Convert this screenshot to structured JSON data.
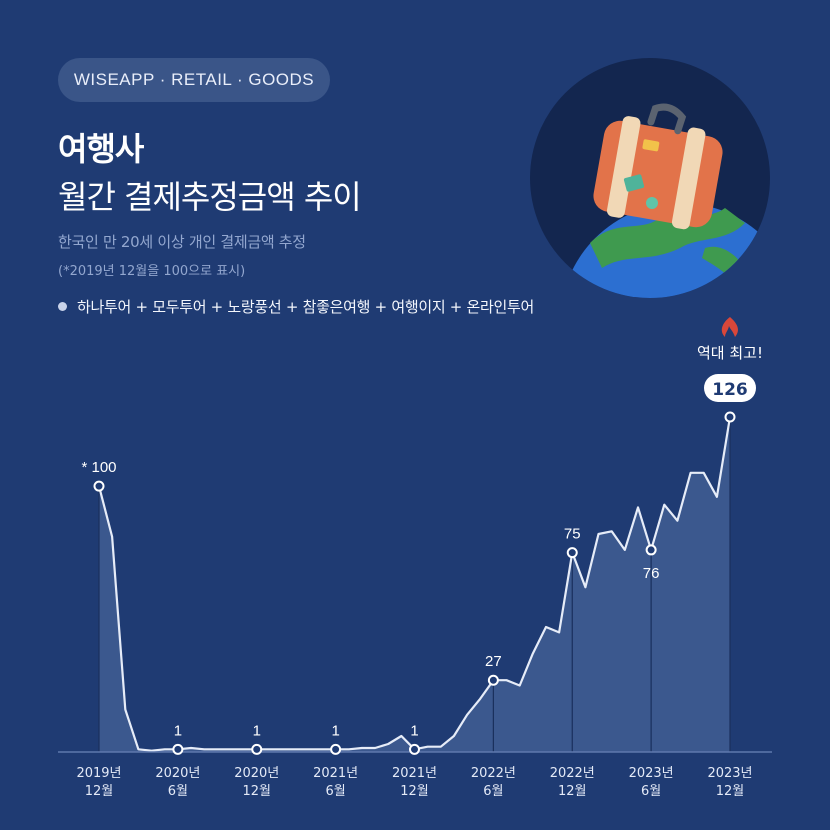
{
  "header": {
    "badge": "WISEAPP · RETAIL · GOODS",
    "title_bold": "여행사",
    "title_main": "월간 결제추정금액 추이",
    "subtitle": "한국인 만 20세 이상 개인 결제금액 추정",
    "note": "(*2019년 12월을 100으로 표시)",
    "legend": "하나투어 + 모두투어 + 노랑풍선 + 참좋은여행 + 여행이지 + 온라인투어"
  },
  "icons": [
    "suitcase-globe-illustration",
    "fire-icon"
  ],
  "colors": {
    "background": "#1f3b73",
    "line": "#e6ecf8",
    "area": "#3d5a8f",
    "highlight": "#d9473a"
  },
  "chart_data": {
    "type": "area",
    "x": [
      "2019-12",
      "2020-01",
      "2020-02",
      "2020-03",
      "2020-04",
      "2020-05",
      "2020-06",
      "2020-07",
      "2020-08",
      "2020-09",
      "2020-10",
      "2020-11",
      "2020-12",
      "2021-01",
      "2021-02",
      "2021-03",
      "2021-04",
      "2021-05",
      "2021-06",
      "2021-07",
      "2021-08",
      "2021-09",
      "2021-10",
      "2021-11",
      "2021-12",
      "2022-01",
      "2022-02",
      "2022-03",
      "2022-04",
      "2022-05",
      "2022-06",
      "2022-07",
      "2022-08",
      "2022-09",
      "2022-10",
      "2022-11",
      "2022-12",
      "2023-01",
      "2023-02",
      "2023-03",
      "2023-04",
      "2023-05",
      "2023-06",
      "2023-07",
      "2023-08",
      "2023-09",
      "2023-10",
      "2023-11",
      "2023-12"
    ],
    "values": [
      100,
      81,
      16,
      1,
      0.5,
      1,
      1,
      1.5,
      1,
      1,
      1,
      1,
      1,
      1,
      1,
      1,
      1,
      1,
      1,
      1,
      1.5,
      1.5,
      3,
      6,
      1,
      2,
      2,
      6,
      14,
      20,
      27,
      27,
      25,
      37,
      47,
      45,
      75,
      62,
      82,
      83,
      76,
      92,
      76,
      93,
      87,
      105,
      105,
      96,
      126
    ],
    "tick_labels": [
      {
        "x": "2019-12",
        "line1": "2019년",
        "line2": "12월"
      },
      {
        "x": "2020-06",
        "line1": "2020년",
        "line2": "6월"
      },
      {
        "x": "2020-12",
        "line1": "2020년",
        "line2": "12월"
      },
      {
        "x": "2021-06",
        "line1": "2021년",
        "line2": "6월"
      },
      {
        "x": "2021-12",
        "line1": "2021년",
        "line2": "12월"
      },
      {
        "x": "2022-06",
        "line1": "2022년",
        "line2": "6월"
      },
      {
        "x": "2022-12",
        "line1": "2022년",
        "line2": "12월"
      },
      {
        "x": "2023-06",
        "line1": "2023년",
        "line2": "6월"
      },
      {
        "x": "2023-12",
        "line1": "2023년",
        "line2": "12월"
      }
    ],
    "data_labels": [
      {
        "x": "2019-12",
        "text": "* 100"
      },
      {
        "x": "2020-06",
        "text": "1"
      },
      {
        "x": "2020-12",
        "text": "1"
      },
      {
        "x": "2021-06",
        "text": "1"
      },
      {
        "x": "2021-12",
        "text": "1"
      },
      {
        "x": "2022-06",
        "text": "27"
      },
      {
        "x": "2022-12",
        "text": "75"
      },
      {
        "x": "2023-06",
        "text": "76"
      },
      {
        "x": "2023-12",
        "text": "126"
      }
    ],
    "peak_label": "역대 최고!",
    "ylim": [
      0,
      126
    ]
  }
}
